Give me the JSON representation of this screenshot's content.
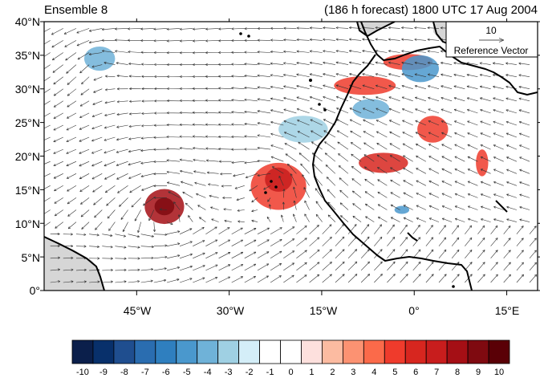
{
  "header": {
    "left_title": "Ensemble 8",
    "right_title": "(186 h forecast) 1800 UTC 17 Aug 2004"
  },
  "reference_vector": {
    "magnitude": "10",
    "label": "Reference Vector"
  },
  "axes": {
    "lat_labels": [
      "40°N",
      "35°N",
      "30°N",
      "25°N",
      "20°N",
      "15°N",
      "10°N",
      "5°N",
      "0°"
    ],
    "lat_values": [
      40,
      35,
      30,
      25,
      20,
      15,
      10,
      5,
      0
    ],
    "lon_labels": [
      "45°W",
      "30°W",
      "15°W",
      "0°",
      "15°E"
    ],
    "lon_values": [
      -45,
      -30,
      -15,
      0,
      15
    ],
    "lon_range": [
      -60,
      20
    ],
    "lat_range": [
      0,
      40
    ]
  },
  "colorbar": {
    "labels": [
      "-10",
      "-9",
      "-8",
      "-7",
      "-6",
      "-5",
      "-4",
      "-3",
      "-2",
      "-1",
      "0",
      "1",
      "2",
      "3",
      "4",
      "5",
      "6",
      "7",
      "8",
      "9",
      "10"
    ],
    "colors": [
      "#0b1f4b",
      "#08306b",
      "#1f4e8f",
      "#2a6db0",
      "#2f7fbf",
      "#4a98cd",
      "#6fb2d8",
      "#9fd0e3",
      "#d4eef8",
      "#ffffff",
      "#ffffff",
      "#fde0dd",
      "#fcbba1",
      "#fc9272",
      "#fb6a4a",
      "#ef3b2c",
      "#d7261f",
      "#c81d1d",
      "#a50f15",
      "#7f0a10",
      "#5a0006"
    ]
  },
  "field_blobs": [
    {
      "lon": -40.5,
      "lat": 12.5,
      "rx": 3.2,
      "ry": 2.6,
      "value": 8
    },
    {
      "lon": -40.5,
      "lat": 12.5,
      "rx": 1.6,
      "ry": 1.3,
      "value": 9
    },
    {
      "lon": -22,
      "lat": 15.5,
      "rx": 4.5,
      "ry": 3.5,
      "value": 5
    },
    {
      "lon": -22,
      "lat": 16.5,
      "rx": 2.2,
      "ry": 1.8,
      "value": 7
    },
    {
      "lon": -51,
      "lat": 34.5,
      "rx": 2.5,
      "ry": 1.8,
      "value": -4
    },
    {
      "lon": -5,
      "lat": 19,
      "rx": 4,
      "ry": 1.5,
      "value": 6
    },
    {
      "lon": 3,
      "lat": 24,
      "rx": 2.5,
      "ry": 2,
      "value": 5
    },
    {
      "lon": 11,
      "lat": 19,
      "rx": 1,
      "ry": 2,
      "value": 5
    },
    {
      "lon": -8,
      "lat": 30.5,
      "rx": 5,
      "ry": 1.4,
      "value": 5
    },
    {
      "lon": -1,
      "lat": 34,
      "rx": 4,
      "ry": 1.2,
      "value": 5
    },
    {
      "lon": 1,
      "lat": 33,
      "rx": 3,
      "ry": 2,
      "value": -5
    },
    {
      "lon": -7,
      "lat": 27,
      "rx": 3,
      "ry": 1.5,
      "value": -4
    },
    {
      "lon": -2,
      "lat": 12,
      "rx": 1.2,
      "ry": 0.6,
      "value": -5
    },
    {
      "lon": -18,
      "lat": 24,
      "rx": 4,
      "ry": 2,
      "value": -3
    }
  ]
}
